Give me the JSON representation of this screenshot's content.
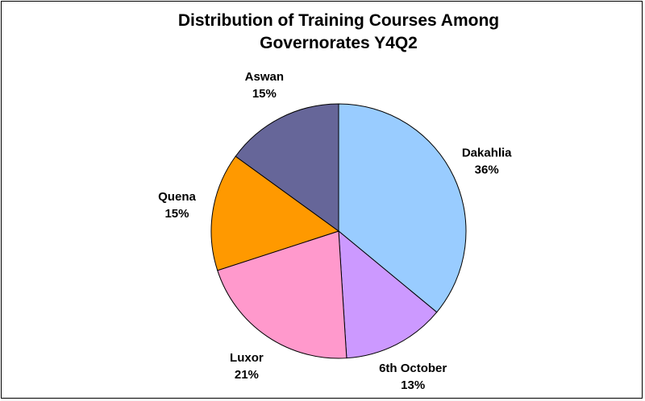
{
  "chart_data": {
    "type": "pie",
    "title": "Distribution of Training Courses Among Governorates Y4Q2",
    "categories": [
      "Dakahlia",
      "6th October",
      "Luxor",
      "Quena",
      "Aswan"
    ],
    "values": [
      36,
      13,
      21,
      15,
      15
    ],
    "value_labels": [
      "36%",
      "13%",
      "21%",
      "15%",
      "15%"
    ],
    "colors": [
      "#99ccff",
      "#cc99ff",
      "#ff99cc",
      "#ff9900",
      "#666699"
    ]
  }
}
